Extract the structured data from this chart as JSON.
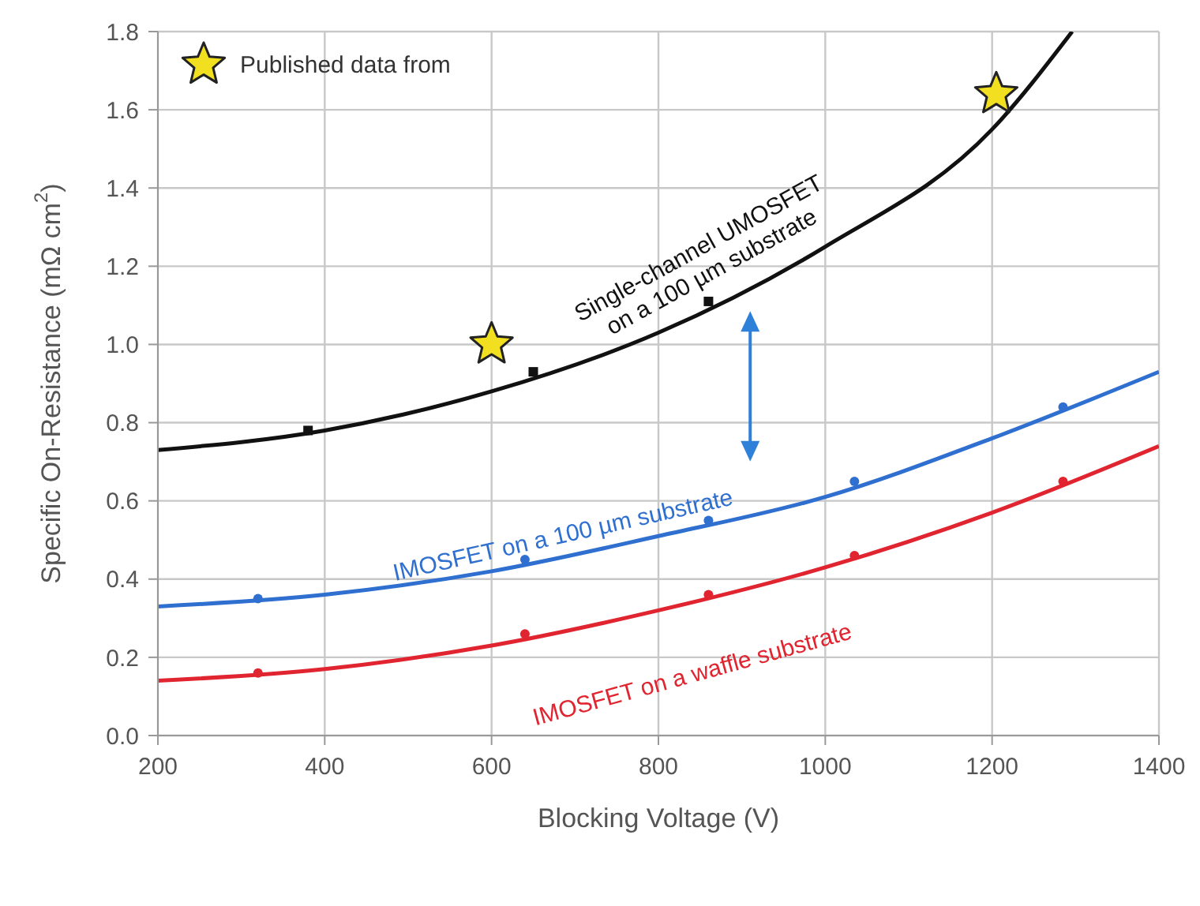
{
  "chart_data": {
    "type": "line",
    "xlabel": "Blocking Voltage (V)",
    "ylabel": "Specific On-Resistance (mΩ cm$^{2}$)",
    "xlim": [
      200,
      1400
    ],
    "xticks": [
      200,
      400,
      600,
      800,
      1000,
      1200,
      1400
    ],
    "ylim": [
      0,
      1.8
    ],
    "yticks": [
      {
        "value": 0,
        "label": "0.0"
      },
      {
        "value": 0.2,
        "label": "0.2"
      },
      {
        "value": 0.4,
        "label": "0.4"
      },
      {
        "value": 0.6,
        "label": "0.6"
      },
      {
        "value": 0.8,
        "label": "0.8"
      },
      {
        "value": 1.0,
        "label": "1.0"
      },
      {
        "value": 1.2,
        "label": "1.2"
      },
      {
        "value": 1.4,
        "label": "1.4"
      },
      {
        "value": 1.6,
        "label": "1.6"
      },
      {
        "value": 1.8,
        "label": "1.8"
      }
    ],
    "grid": true,
    "legend": "top left",
    "series": [
      {
        "type": "line",
        "name": "Single-channel UMOSFET\non a 100 µm substrate",
        "color": "#111111",
        "marker": "none",
        "x": [
          200,
          400,
          600,
          800,
          1000,
          1200,
          1296
        ],
        "values": [
          0.73,
          0.78,
          0.88,
          1.03,
          1.25,
          1.55,
          1.8
        ]
      },
      {
        "type": "line",
        "name": "IMOSFET on a 100 µm substrate",
        "color": "#2f6fd0",
        "marker": "none",
        "x": [
          200,
          400,
          600,
          800,
          1000,
          1200,
          1400
        ],
        "values": [
          0.33,
          0.36,
          0.42,
          0.51,
          0.61,
          0.76,
          0.93
        ]
      },
      {
        "type": "line",
        "name": "IMOSFET on a waffle substrate",
        "color": "#e02530",
        "marker": "none",
        "x": [
          200,
          400,
          600,
          800,
          1000,
          1200,
          1400
        ],
        "values": [
          0.14,
          0.17,
          0.23,
          0.32,
          0.43,
          0.57,
          0.74
        ]
      },
      {
        "type": "scatter",
        "color": "#111111",
        "marker": "square",
        "x": [
          380,
          650,
          860
        ],
        "values": [
          0.78,
          0.93,
          1.11
        ]
      },
      {
        "type": "scatter",
        "color": "#2f6fd0",
        "marker": "circle",
        "x": [
          320,
          640,
          860,
          1035,
          1285
        ],
        "values": [
          0.35,
          0.45,
          0.55,
          0.65,
          0.84
        ]
      },
      {
        "type": "scatter",
        "color": "#e02530",
        "marker": "circle",
        "x": [
          320,
          640,
          860,
          1035,
          1285
        ],
        "values": [
          0.16,
          0.26,
          0.36,
          0.46,
          0.65
        ]
      },
      {
        "type": "scatter",
        "name": "Published data from",
        "color": "#f2e020",
        "marker": "star",
        "x": [
          600,
          1205
        ],
        "values": [
          1.0,
          1.64
        ]
      }
    ]
  }
}
